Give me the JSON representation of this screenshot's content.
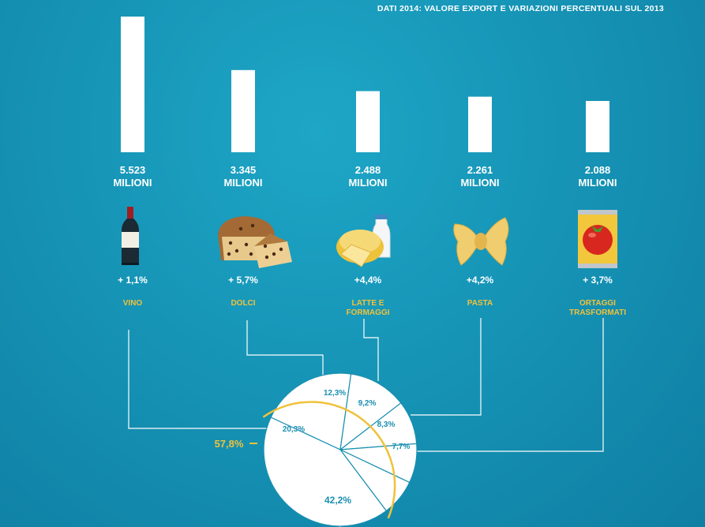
{
  "header": "DATI 2014: VALORE EXPORT E VARIAZIONI PERCENTUALI SUL 2013",
  "colors": {
    "background": "#1694b6",
    "bar": "#ffffff",
    "accent": "#f0c23b",
    "pie_text": "#1a8fb0",
    "connector": "#ffffff"
  },
  "chart_data": [
    {
      "type": "bar",
      "title": "DATI 2014: VALORE EXPORT E VARIAZIONI PERCENTUALI SUL 2013",
      "categories": [
        "VINO",
        "DOLCI",
        "LATTE E FORMAGGI",
        "PASTA",
        "ORTAGGI TRASFORMATI"
      ],
      "values": [
        5523,
        3345,
        2488,
        2261,
        2088
      ],
      "value_labels": [
        "5.523",
        "3.345",
        "2.488",
        "2.261",
        "2.088"
      ],
      "unit_label": "MILIONI",
      "changes": [
        "+ 1,1%",
        "+ 5,7%",
        "+4,4%",
        "+4,2%",
        "+ 3,7%"
      ],
      "category_lines": [
        [
          "VINO"
        ],
        [
          "DOLCI"
        ],
        [
          "LATTE E",
          "FORMAGGI"
        ],
        [
          "PASTA"
        ],
        [
          "ORTAGGI",
          "TRASFORMATI"
        ]
      ],
      "icons": [
        "wine-bottle-icon",
        "panettone-icon",
        "milk-cheese-icon",
        "farfalle-pasta-icon",
        "tomato-can-icon"
      ],
      "ylim": [
        0,
        5523
      ],
      "grid": false
    },
    {
      "type": "pie",
      "slices": [
        {
          "label": "20,3%",
          "value": 20.3
        },
        {
          "label": "12,3%",
          "value": 12.3
        },
        {
          "label": "9,2%",
          "value": 9.2
        },
        {
          "label": "8,3%",
          "value": 8.3
        },
        {
          "label": "7,7%",
          "value": 7.7
        },
        {
          "label": "42,2%",
          "value": 42.2
        }
      ],
      "highlight_total": "57,8%"
    }
  ]
}
